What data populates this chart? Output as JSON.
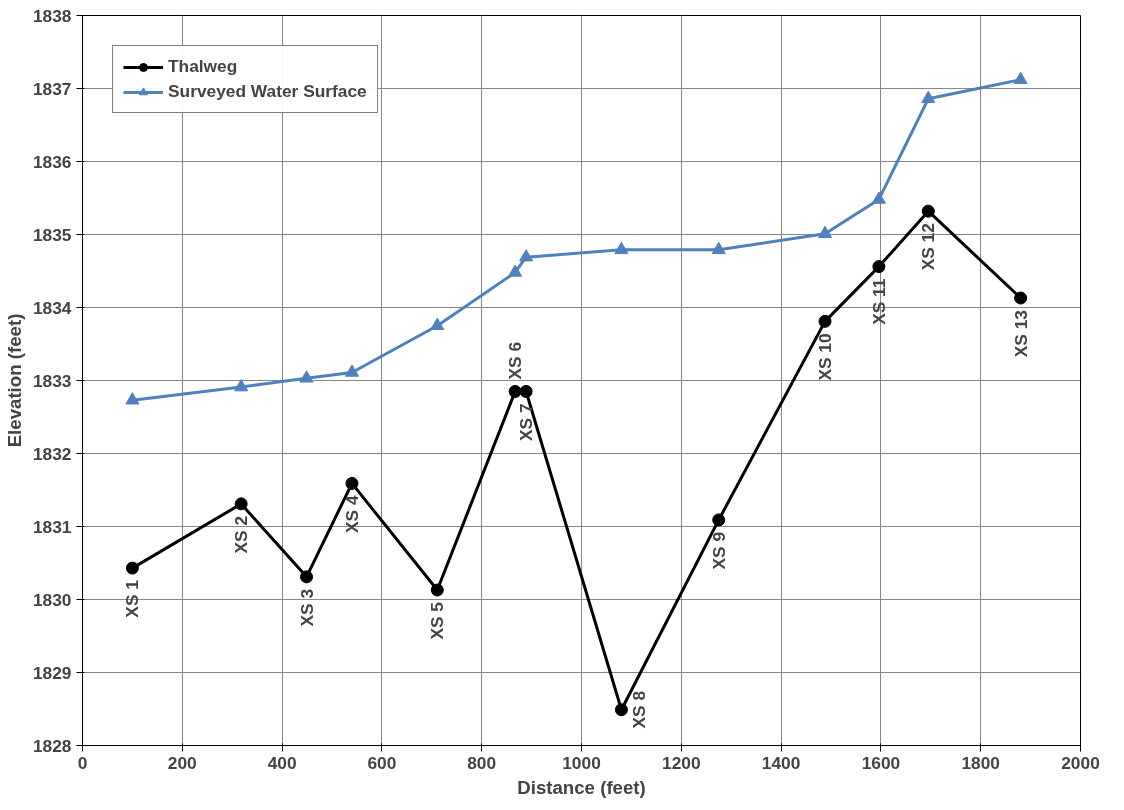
{
  "chart_data": {
    "type": "line",
    "xlabel": "Distance (feet)",
    "ylabel": "Elevation (feet)",
    "xlim": [
      0,
      2000
    ],
    "xticks": [
      0,
      200,
      400,
      600,
      800,
      1000,
      1200,
      1400,
      1600,
      1800,
      2000
    ],
    "ylim": [
      1828,
      1838
    ],
    "yticks": [
      1828,
      1829,
      1830,
      1831,
      1832,
      1833,
      1834,
      1835,
      1836,
      1837,
      1838
    ],
    "grid": true,
    "legend": "top left",
    "series": [
      {
        "name": "Thalweg",
        "color": "#000000",
        "marker": "circle",
        "x": [
          100,
          318,
          449,
          540,
          711,
          867,
          889,
          1080,
          1275,
          1488,
          1596,
          1695,
          1880
        ],
        "values": [
          1830.43,
          1831.31,
          1830.31,
          1831.59,
          1830.13,
          1832.85,
          1832.85,
          1828.49,
          1831.09,
          1833.81,
          1834.56,
          1835.32,
          1834.13
        ]
      },
      {
        "name": "Surveyed Water Surface",
        "color": "#4f81bd",
        "marker": "triangle",
        "x": [
          100,
          318,
          449,
          540,
          711,
          867,
          889,
          1080,
          1275,
          1488,
          1596,
          1695,
          1880
        ],
        "values": [
          1832.73,
          1832.91,
          1833.03,
          1833.11,
          1833.75,
          1834.48,
          1834.69,
          1834.79,
          1834.79,
          1835.01,
          1835.48,
          1836.86,
          1837.12
        ]
      }
    ],
    "annotations": [
      {
        "text": "XS 1",
        "x": 100,
        "y": 1830.43
      },
      {
        "text": "XS 2",
        "x": 318,
        "y": 1831.31
      },
      {
        "text": "XS 3",
        "x": 449,
        "y": 1830.31
      },
      {
        "text": "XS 4",
        "x": 540,
        "y": 1831.59
      },
      {
        "text": "XS 5",
        "x": 711,
        "y": 1830.13
      },
      {
        "text": "XS 6",
        "x": 867,
        "y": 1832.85
      },
      {
        "text": "XS 7",
        "x": 889,
        "y": 1832.85
      },
      {
        "text": "XS 8",
        "x": 1080,
        "y": 1828.49
      },
      {
        "text": "XS 9",
        "x": 1275,
        "y": 1831.09
      },
      {
        "text": "XS 10",
        "x": 1488,
        "y": 1833.81
      },
      {
        "text": "XS 11",
        "x": 1596,
        "y": 1834.56
      },
      {
        "text": "XS 12",
        "x": 1695,
        "y": 1835.32
      },
      {
        "text": "XS 13",
        "x": 1880,
        "y": 1834.13
      }
    ]
  }
}
